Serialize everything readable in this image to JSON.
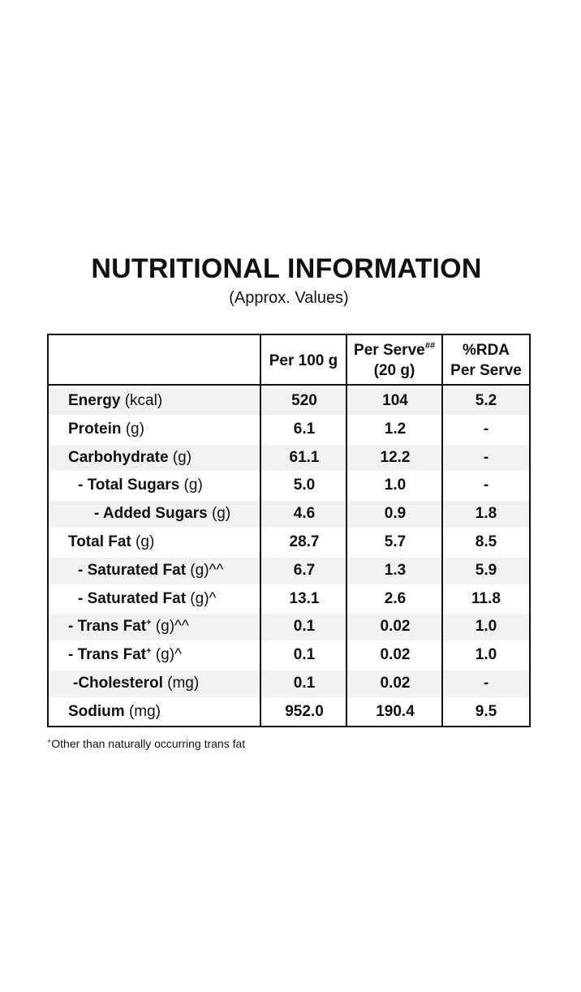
{
  "title": "NUTRITIONAL INFORMATION",
  "subtitle": "(Approx. Values)",
  "header": {
    "col1": "Per 100 g",
    "col2_line1": "Per Serve",
    "col2_mark": "##",
    "col2_line2": "(20 g)",
    "col3_line1": "%RDA",
    "col3_line2": "Per Serve"
  },
  "rows": [
    {
      "name": "Energy",
      "unit": " (kcal)",
      "per100": "520",
      "perServe": "104",
      "rda": "5.2"
    },
    {
      "name": "Protein",
      "unit": " (g)",
      "per100": "6.1",
      "perServe": "1.2",
      "rda": "-"
    },
    {
      "name": "Carbohydrate",
      "unit": " (g)",
      "per100": "61.1",
      "perServe": "12.2",
      "rda": "-"
    },
    {
      "name": "- Total Sugars",
      "unit": " (g)",
      "per100": "5.0",
      "perServe": "1.0",
      "rda": "-"
    },
    {
      "name": "- Added Sugars",
      "unit": " (g)",
      "per100": "4.6",
      "perServe": "0.9",
      "rda": "1.8"
    },
    {
      "name": "Total Fat",
      "unit": " (g)",
      "per100": "28.7",
      "perServe": "5.7",
      "rda": "8.5"
    },
    {
      "name": "- Saturated Fat",
      "unit": " (g)^^",
      "per100": "6.7",
      "perServe": "1.3",
      "rda": "5.9"
    },
    {
      "name": "- Saturated Fat",
      "unit": " (g)^",
      "per100": "13.1",
      "perServe": "2.6",
      "rda": "11.8"
    },
    {
      "name": "- Trans Fat",
      "mark": "+",
      "unit": " (g)^^",
      "per100": "0.1",
      "perServe": "0.02",
      "rda": "1.0"
    },
    {
      "name": "- Trans Fat",
      "mark": "+",
      "unit": " (g)^",
      "per100": "0.1",
      "perServe": "0.02",
      "rda": "1.0"
    },
    {
      "name": "-Cholesterol",
      "unit": " (mg)",
      "per100": "0.1",
      "perServe": "0.02",
      "rda": "-"
    },
    {
      "name": "Sodium",
      "unit": " (mg)",
      "per100": "952.0",
      "perServe": "190.4",
      "rda": "9.5"
    }
  ],
  "footnote": {
    "mark": "+",
    "text": "Other than naturally occurring trans fat"
  }
}
